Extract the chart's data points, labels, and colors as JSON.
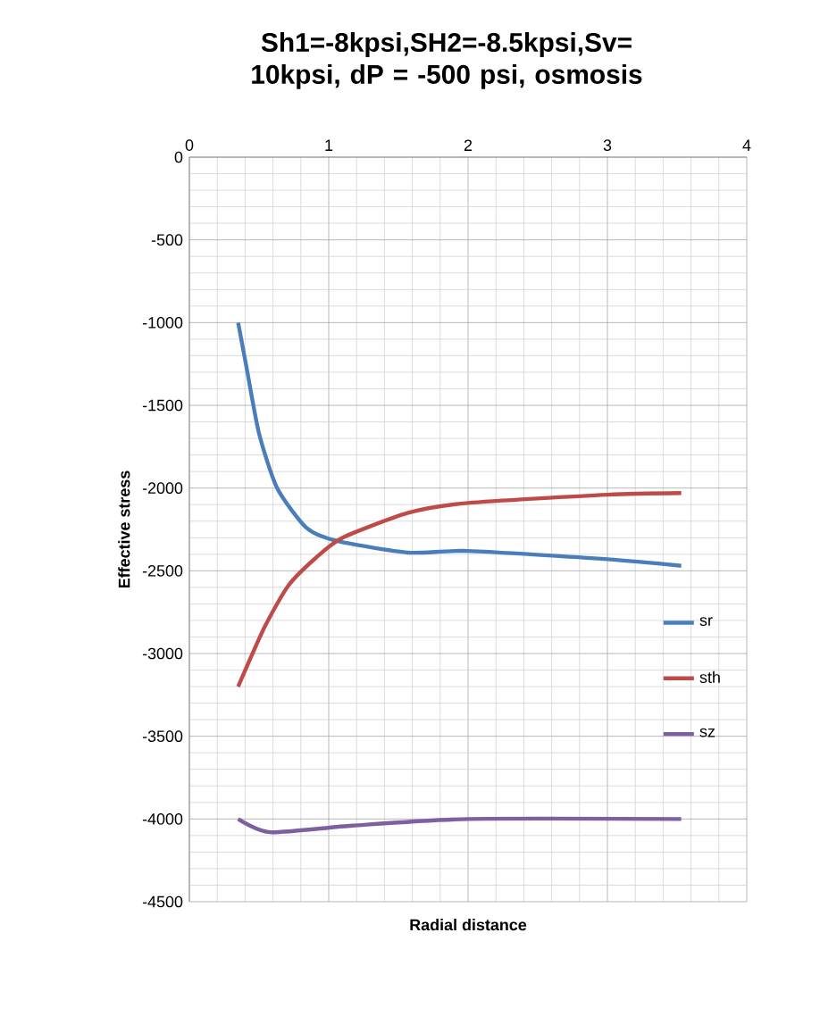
{
  "chart_data": {
    "type": "line",
    "title": "Sh1=-8kpsi,SH2=-8.5kpsi,Sv= 10kpsi, dP = -500 psi, osmosis",
    "xlabel": "Radial distance",
    "ylabel": "Effective stress",
    "xlim": [
      0,
      4
    ],
    "ylim": [
      -4500,
      0
    ],
    "xticks": [
      0,
      1,
      2,
      3,
      4
    ],
    "yticks": [
      0,
      -500,
      -1000,
      -1500,
      -2000,
      -2500,
      -3000,
      -3500,
      -4000,
      -4500
    ],
    "grid": true,
    "legend": "right",
    "marker": "none",
    "line_style": "solid",
    "series": [
      {
        "name": "sr",
        "color": "#4a7ebb",
        "x": [
          0.35,
          0.41,
          0.5,
          0.63,
          0.84,
          1.06,
          1.57,
          2.0,
          3.0,
          3.53
        ],
        "values": [
          -1000,
          -1270,
          -1670,
          -2000,
          -2240,
          -2320,
          -2390,
          -2380,
          -2430,
          -2470
        ]
      },
      {
        "name": "sth",
        "color": "#be4b48",
        "x": [
          0.35,
          0.54,
          0.71,
          0.91,
          1.1,
          1.57,
          2.0,
          3.0,
          3.53
        ],
        "values": [
          -3200,
          -2840,
          -2590,
          -2420,
          -2300,
          -2150,
          -2090,
          -2040,
          -2030
        ]
      },
      {
        "name": "sz",
        "color": "#7d60a0",
        "x": [
          0.35,
          0.58,
          1.17,
          2.0,
          3.53
        ],
        "values": [
          -4000,
          -4080,
          -4040,
          -4000,
          -4000
        ]
      }
    ]
  }
}
